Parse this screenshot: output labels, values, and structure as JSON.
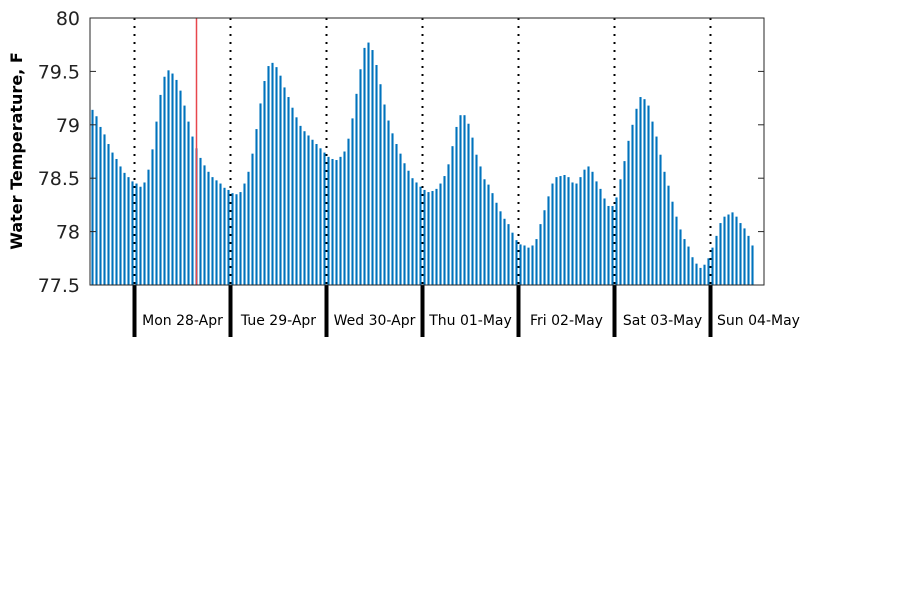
{
  "chart_data": {
    "type": "bar",
    "title": "",
    "xlabel": "",
    "ylabel": "Water Temperature, F",
    "ylim": [
      77.5,
      80
    ],
    "yticks": [
      {
        "value": 77.5,
        "label": "77.5"
      },
      {
        "value": 78,
        "label": "78"
      },
      {
        "value": 78.5,
        "label": "78.5"
      },
      {
        "value": 79,
        "label": "79"
      },
      {
        "value": 79.5,
        "label": "79.5"
      },
      {
        "value": 80,
        "label": "80"
      }
    ],
    "x_unit": "hours from start of record (hourly samples)",
    "day_boundaries_hours": [
      11,
      35,
      59,
      83,
      107,
      131,
      155
    ],
    "day_labels": [
      "Mon 28-Apr",
      "Tue 29-Apr",
      "Wed 30-Apr",
      "Thu 01-May",
      "Fri 02-May",
      "Sat 03-May",
      "Sun 04-May"
    ],
    "marker_hour": 26.5,
    "grid": false,
    "legend": "none",
    "colors": {
      "bars": "#0072bd",
      "marker": "#e8474c",
      "day_divider": "#000000"
    },
    "series": [
      {
        "values": [
          79.14,
          79.08,
          78.98,
          78.91,
          78.82,
          78.74,
          78.68,
          78.61,
          78.55,
          78.51,
          78.47,
          78.45,
          78.42,
          78.46,
          78.58,
          78.77,
          79.03,
          79.28,
          79.45,
          79.51,
          79.48,
          79.42,
          79.32,
          79.18,
          79.03,
          78.89,
          78.78,
          78.69,
          78.62,
          78.56,
          78.51,
          78.48,
          78.45,
          78.41,
          78.39,
          78.36,
          78.35,
          78.37,
          78.45,
          78.56,
          78.73,
          78.96,
          79.2,
          79.41,
          79.55,
          79.58,
          79.54,
          79.46,
          79.35,
          79.26,
          79.16,
          79.07,
          78.99,
          78.94,
          78.9,
          78.86,
          78.82,
          78.78,
          78.74,
          78.7,
          78.68,
          78.67,
          78.7,
          78.75,
          78.87,
          79.06,
          79.29,
          79.52,
          79.72,
          79.77,
          79.7,
          79.56,
          79.38,
          79.19,
          79.04,
          78.92,
          78.82,
          78.73,
          78.64,
          78.57,
          78.5,
          78.46,
          78.42,
          78.39,
          78.37,
          78.38,
          78.4,
          78.45,
          78.52,
          78.63,
          78.8,
          78.98,
          79.09,
          79.09,
          79.01,
          78.88,
          78.72,
          78.61,
          78.49,
          78.44,
          78.36,
          78.27,
          78.19,
          78.12,
          78.07,
          77.99,
          77.92,
          77.88,
          77.87,
          77.85,
          77.87,
          77.93,
          78.07,
          78.2,
          78.33,
          78.45,
          78.51,
          78.52,
          78.53,
          78.51,
          78.46,
          78.45,
          78.51,
          78.58,
          78.61,
          78.56,
          78.47,
          78.4,
          78.31,
          78.24,
          78.24,
          78.32,
          78.49,
          78.66,
          78.85,
          79.0,
          79.15,
          79.26,
          79.24,
          79.18,
          79.03,
          78.89,
          78.72,
          78.56,
          78.43,
          78.28,
          78.14,
          78.02,
          77.93,
          77.86,
          77.76,
          77.7,
          77.66,
          77.69,
          77.75,
          77.85,
          77.96,
          78.08,
          78.14,
          78.16,
          78.18,
          78.14,
          78.08,
          78.03,
          77.96,
          77.87
        ]
      }
    ]
  }
}
